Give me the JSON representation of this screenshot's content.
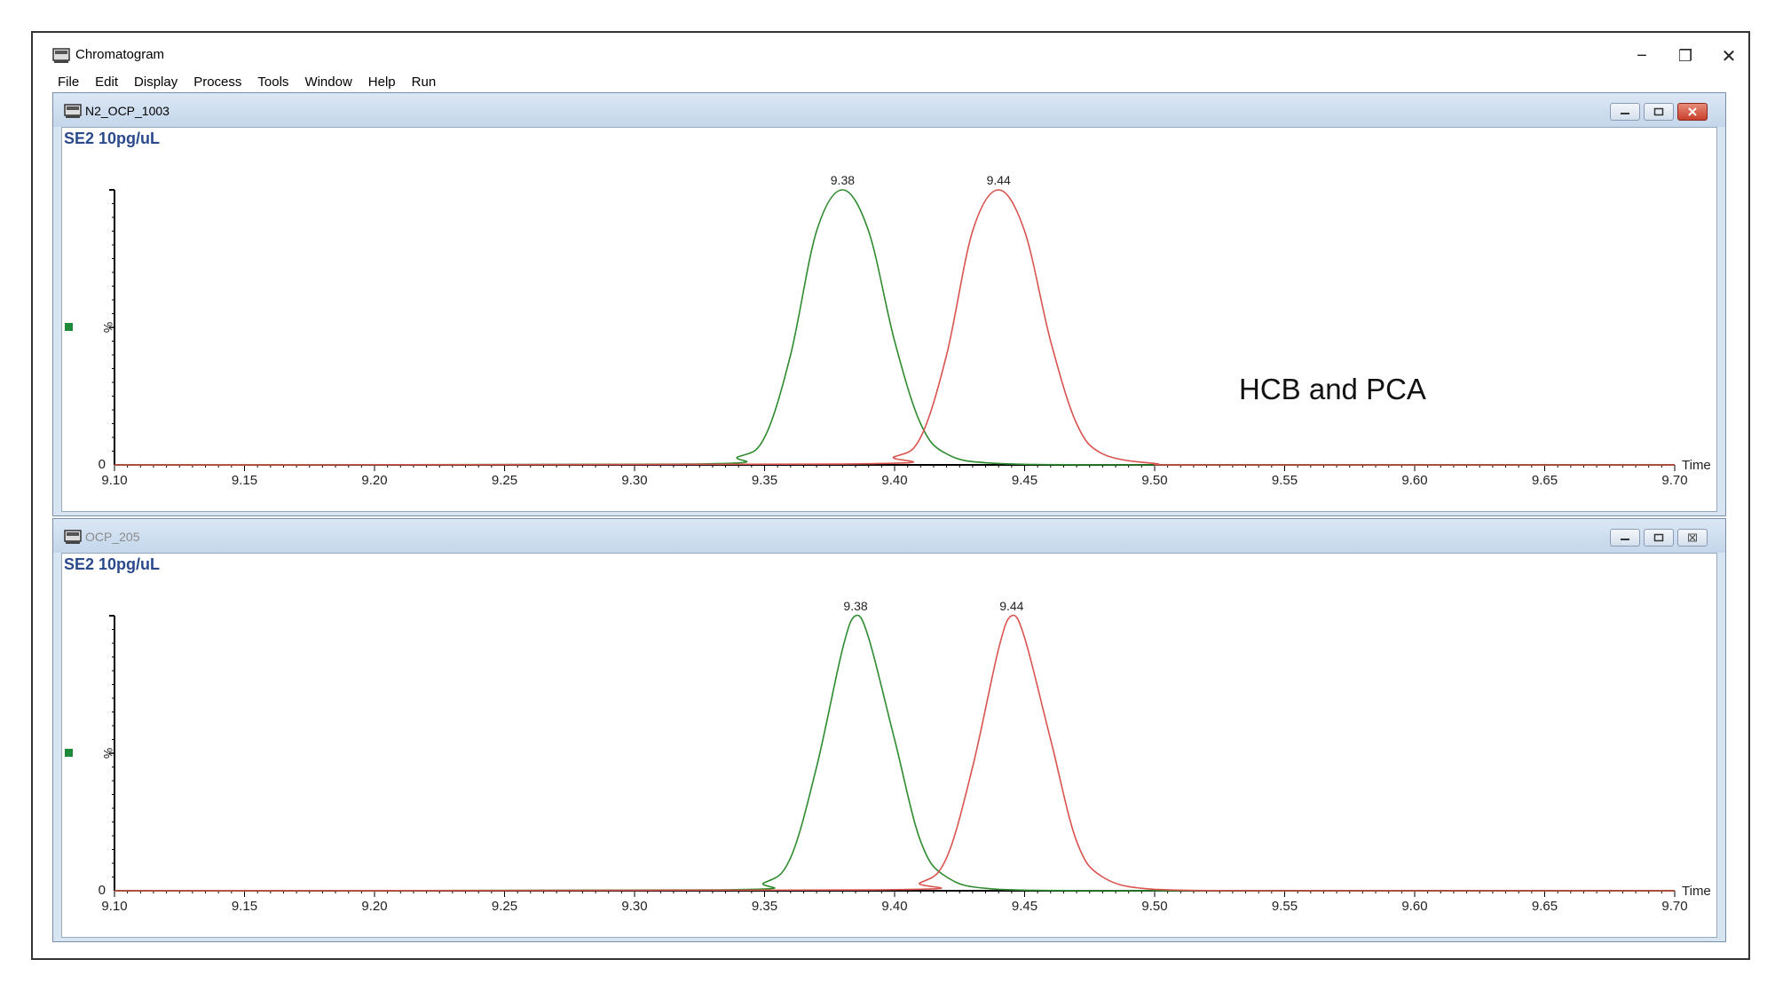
{
  "window": {
    "title": "Chromatogram",
    "controls": {
      "minimize": "−",
      "restore": "❐",
      "close": "✕"
    }
  },
  "menu": [
    "File",
    "Edit",
    "Display",
    "Process",
    "Tools",
    "Window",
    "Help",
    "Run"
  ],
  "panels": [
    {
      "doc_title": "N2_OCP_1003",
      "sample_label": "SE2 10pg/uL",
      "active": true,
      "annotation": "HCB and PCA"
    },
    {
      "doc_title": "OCP_205",
      "sample_label": "SE2 10pg/uL",
      "active": false
    }
  ],
  "colors": {
    "green_trace": "#2e8b2e",
    "red_trace": "#d9534f",
    "label_blue": "#2b4a8c",
    "marker_green": "#1f8a3a"
  },
  "chart_data": [
    {
      "type": "line",
      "xlabel": "Time",
      "ylabel": "%",
      "xlim": [
        9.1,
        9.7
      ],
      "ylim": [
        0,
        100
      ],
      "x_ticks": [
        "9.10",
        "9.15",
        "9.20",
        "9.25",
        "9.30",
        "9.35",
        "9.40",
        "9.45",
        "9.50",
        "9.55",
        "9.60",
        "9.65",
        "9.70"
      ],
      "y_ticks": [
        "0"
      ],
      "series": [
        {
          "color": "#2e8b2e",
          "x": [
            9.1,
            9.32,
            9.34,
            9.35,
            9.36,
            9.37,
            9.38,
            9.39,
            9.4,
            9.41,
            9.42,
            9.44,
            9.5,
            9.7
          ],
          "y": [
            0,
            0.3,
            3,
            10,
            40,
            85,
            100,
            85,
            45,
            15,
            4,
            0.5,
            0,
            0
          ],
          "peak_label": "9.38",
          "peak_x": 9.38
        },
        {
          "color": "#d9534f",
          "x": [
            9.1,
            9.38,
            9.4,
            9.41,
            9.42,
            9.43,
            9.44,
            9.45,
            9.46,
            9.47,
            9.48,
            9.5,
            9.52,
            9.7
          ],
          "y": [
            0,
            0.3,
            3,
            10,
            40,
            85,
            100,
            85,
            45,
            15,
            4,
            0.5,
            0,
            0
          ],
          "peak_label": "9.44",
          "peak_x": 9.44
        }
      ]
    },
    {
      "type": "line",
      "xlabel": "Time",
      "ylabel": "%",
      "xlim": [
        9.1,
        9.7
      ],
      "ylim": [
        0,
        100
      ],
      "x_ticks": [
        "9.10",
        "9.15",
        "9.20",
        "9.25",
        "9.30",
        "9.35",
        "9.40",
        "9.45",
        "9.50",
        "9.55",
        "9.60",
        "9.65",
        "9.70"
      ],
      "y_ticks": [
        "0"
      ],
      "series": [
        {
          "color": "#2e8b2e",
          "x": [
            9.1,
            9.33,
            9.35,
            9.36,
            9.37,
            9.38,
            9.385,
            9.39,
            9.4,
            9.41,
            9.42,
            9.44,
            9.5,
            9.7
          ],
          "y": [
            0,
            0.3,
            3,
            12,
            45,
            88,
            100,
            92,
            55,
            18,
            5,
            0.5,
            0,
            0
          ],
          "peak_label": "9.38",
          "peak_x": 9.385
        },
        {
          "color": "#d9534f",
          "x": [
            9.1,
            9.39,
            9.41,
            9.42,
            9.43,
            9.44,
            9.445,
            9.45,
            9.46,
            9.47,
            9.48,
            9.5,
            9.55,
            9.7
          ],
          "y": [
            0,
            0.3,
            3,
            12,
            45,
            88,
            100,
            92,
            55,
            18,
            5,
            0.5,
            0,
            0
          ],
          "peak_label": "9.44",
          "peak_x": 9.445
        }
      ]
    }
  ]
}
